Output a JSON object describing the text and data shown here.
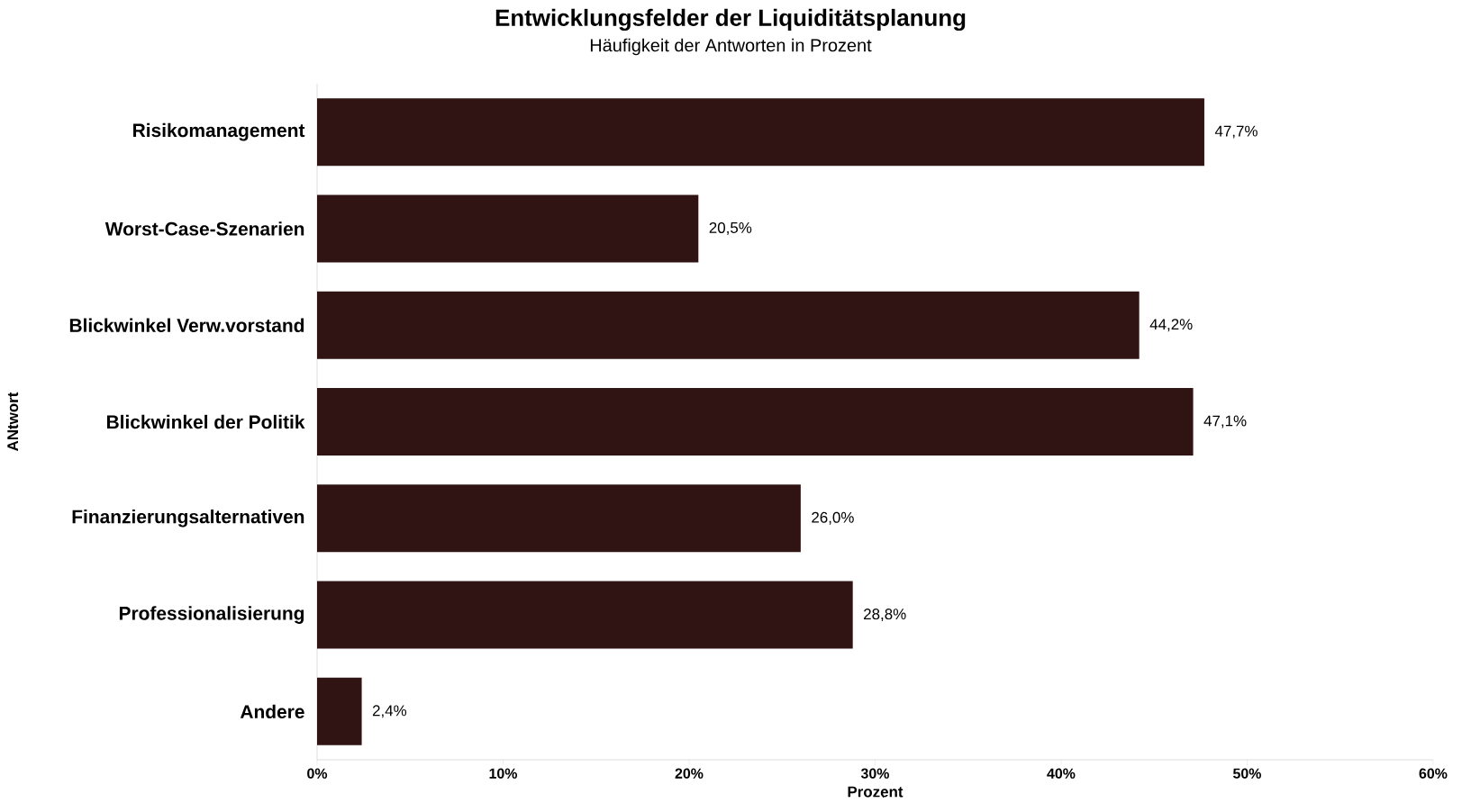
{
  "chart_data": {
    "type": "bar",
    "orientation": "horizontal",
    "title": "Entwicklungsfelder der Liquiditätsplanung",
    "subtitle": "Häufigkeit der Antworten in Prozent",
    "xlabel": "Prozent",
    "ylabel": "ANtwort",
    "categories": [
      "Risikomanagement",
      "Worst-Case-Szenarien",
      "Blickwinkel Verw.vorstand",
      "Blickwinkel der Politik",
      "Finanzierungsalternativen",
      "Professionalisierung",
      "Andere"
    ],
    "values": [
      47.7,
      20.5,
      44.2,
      47.1,
      26.0,
      28.8,
      2.4
    ],
    "value_labels": [
      "47,7%",
      "20,5%",
      "44,2%",
      "47,1%",
      "26,0%",
      "28,8%",
      "2,4%"
    ],
    "color": "#301414",
    "xlim": [
      0,
      60
    ],
    "xticks": [
      {
        "value": 0,
        "label": "0%"
      },
      {
        "value": 10,
        "label": "10%"
      },
      {
        "value": 20,
        "label": "20%"
      },
      {
        "value": 30,
        "label": "30%"
      },
      {
        "value": 40,
        "label": "40%"
      },
      {
        "value": 50,
        "label": "50%"
      },
      {
        "value": 60,
        "label": "60%"
      }
    ],
    "grid": false
  }
}
